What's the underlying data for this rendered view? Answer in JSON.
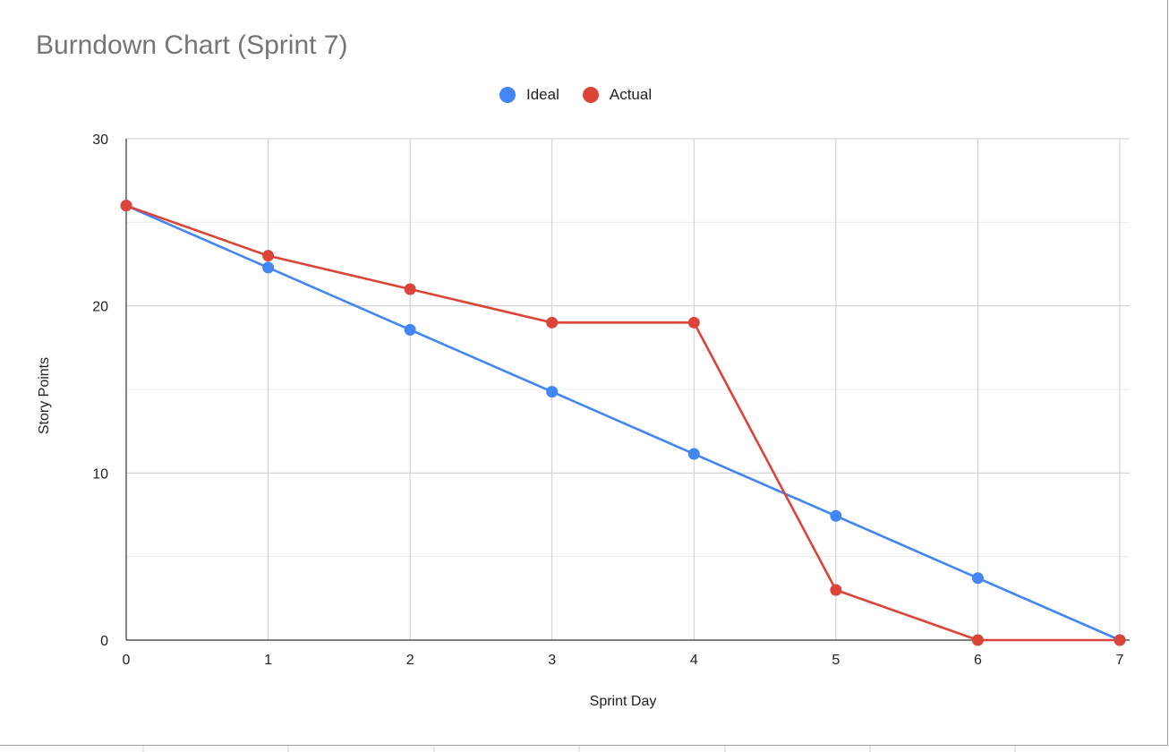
{
  "title": "Burndown Chart (Sprint 7)",
  "legend": [
    {
      "label": "Ideal",
      "color": "#4285f4"
    },
    {
      "label": "Actual",
      "color": "#db4437"
    }
  ],
  "chart_data": {
    "type": "line",
    "title": "Burndown Chart (Sprint 7)",
    "xlabel": "Sprint Day",
    "ylabel": "Story Points",
    "x": [
      0,
      1,
      2,
      3,
      4,
      5,
      6,
      7
    ],
    "x_ticks": [
      "0",
      "1",
      "2",
      "3",
      "4",
      "5",
      "6",
      "7"
    ],
    "y_ticks": [
      "0",
      "10",
      "20",
      "30"
    ],
    "ylim": [
      0,
      30
    ],
    "xlim": [
      0,
      7
    ],
    "grid": true,
    "legend_position": "top",
    "series": [
      {
        "name": "Ideal",
        "color": "#4285f4",
        "values": [
          26,
          22.29,
          18.57,
          14.86,
          11.14,
          7.43,
          3.71,
          0
        ]
      },
      {
        "name": "Actual",
        "color": "#db4437",
        "values": [
          26,
          23,
          21,
          19,
          19,
          3,
          0,
          0
        ]
      }
    ]
  }
}
